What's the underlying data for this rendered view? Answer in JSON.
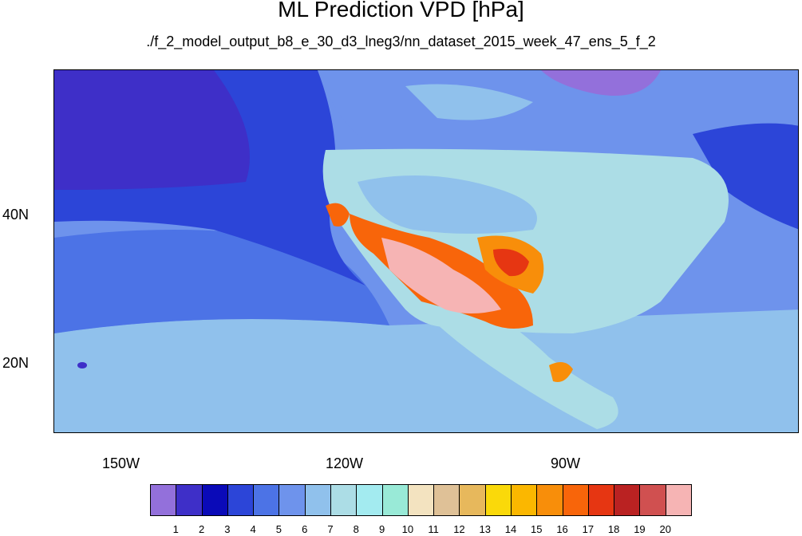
{
  "title": "ML Prediction VPD [hPa]",
  "subtitle": "./f_2_model_output_b8_e_30_d3_lneg3/nn_dataset_2015_week_47_ens_5_f_2",
  "axes": {
    "x_ticks": [
      "150W",
      "120W",
      "90W"
    ],
    "y_ticks": [
      "40N",
      "20N"
    ]
  },
  "colorbar": {
    "labels": [
      "1",
      "2",
      "3",
      "4",
      "5",
      "6",
      "7",
      "8",
      "9",
      "10",
      "11",
      "12",
      "13",
      "14",
      "15",
      "16",
      "17",
      "18",
      "19",
      "20"
    ],
    "colors": [
      "#9370db",
      "#3e2fc8",
      "#0a0ab8",
      "#2c45d8",
      "#4c73e6",
      "#6e93ec",
      "#90c1ec",
      "#acdde6",
      "#a3ebf0",
      "#99ead7",
      "#f3e3c0",
      "#dfc197",
      "#e7b85c",
      "#fad90a",
      "#fbb700",
      "#f88e0a",
      "#f8650a",
      "#e63612",
      "#ba2222",
      "#d05050",
      "#f6b4b4"
    ]
  },
  "chart_data": {
    "type": "heatmap",
    "title": "ML Prediction VPD [hPa]",
    "subtitle": "./f_2_model_output_b8_e_30_d3_lneg3/nn_dataset_2015_week_47_ens_5_f_2",
    "x_ticks": [
      "150W",
      "120W",
      "90W"
    ],
    "y_ticks": [
      "40N",
      "20N"
    ],
    "colorbar_levels": [
      1,
      2,
      3,
      4,
      5,
      6,
      7,
      8,
      9,
      10,
      11,
      12,
      13,
      14,
      15,
      16,
      17,
      18,
      19,
      20
    ]
  }
}
